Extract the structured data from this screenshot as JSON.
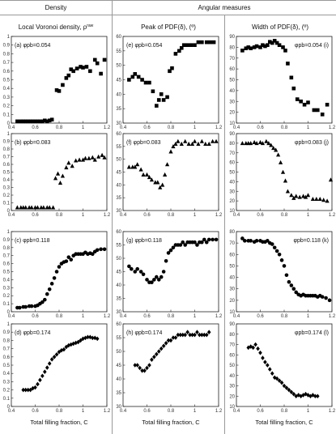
{
  "headers": {
    "density": "Density",
    "angular": "Angular measures"
  },
  "columns": [
    "Local Voronoi density, ρ",
    "Peak of PDF(δ), (º)",
    "Width of PDF(δ), (º)"
  ],
  "xlabel": "Total filling fraction, C",
  "chart_data": [
    {
      "type": "scatter",
      "label": "(a) φpb=0.054",
      "marker": "square",
      "xlim": [
        0.4,
        1.2
      ],
      "ylim": [
        0,
        1
      ],
      "xticks": [
        0.4,
        0.6,
        0.8,
        1,
        1.2
      ],
      "yticks": [
        0,
        0.1,
        0.2,
        0.3,
        0.4,
        0.5,
        0.6,
        0.7,
        0.8,
        0.9,
        1
      ],
      "x": [
        0.45,
        0.48,
        0.5,
        0.52,
        0.54,
        0.56,
        0.58,
        0.6,
        0.62,
        0.64,
        0.66,
        0.68,
        0.7,
        0.72,
        0.74,
        0.78,
        0.8,
        0.83,
        0.86,
        0.88,
        0.9,
        0.92,
        0.95,
        0.98,
        1.0,
        1.03,
        1.06,
        1.1,
        1.12,
        1.15,
        1.18
      ],
      "y": [
        0.02,
        0.02,
        0.02,
        0.02,
        0.02,
        0.02,
        0.02,
        0.02,
        0.02,
        0.02,
        0.02,
        0.03,
        0.02,
        0.03,
        0.04,
        0.38,
        0.37,
        0.44,
        0.52,
        0.55,
        0.62,
        0.6,
        0.63,
        0.65,
        0.64,
        0.65,
        0.6,
        0.73,
        0.69,
        0.57,
        0.73
      ]
    },
    {
      "type": "scatter",
      "label": "(e) φpb=0.054",
      "marker": "square",
      "xlim": [
        0.4,
        1.2
      ],
      "ylim": [
        30,
        60
      ],
      "xticks": [
        0.4,
        0.6,
        0.8,
        1,
        1.2
      ],
      "yticks": [
        30,
        35,
        40,
        45,
        50,
        55,
        60
      ],
      "x": [
        0.45,
        0.48,
        0.5,
        0.53,
        0.56,
        0.59,
        0.62,
        0.65,
        0.68,
        0.7,
        0.72,
        0.74,
        0.77,
        0.79,
        0.81,
        0.84,
        0.87,
        0.89,
        0.91,
        0.94,
        0.97,
        1.0,
        1.03,
        1.06,
        1.1,
        1.13,
        1.16
      ],
      "y": [
        45,
        46,
        47,
        46,
        45,
        44,
        44,
        41,
        36,
        38,
        40,
        38,
        39,
        48,
        49,
        54,
        55,
        56,
        57,
        57,
        57,
        57,
        58,
        58,
        58,
        58,
        58
      ],
      "note": "label printed as (e) φpb=0.054"
    },
    {
      "type": "scatter",
      "label": "φpb=0.054 (i)",
      "marker": "square",
      "xlim": [
        0.4,
        1.2
      ],
      "ylim": [
        10,
        90
      ],
      "xticks": [
        0.4,
        0.6,
        0.8,
        1,
        1.2
      ],
      "yticks": [
        10,
        20,
        30,
        40,
        50,
        60,
        70,
        80,
        90
      ],
      "x": [
        0.45,
        0.48,
        0.5,
        0.52,
        0.55,
        0.57,
        0.6,
        0.62,
        0.64,
        0.66,
        0.68,
        0.7,
        0.72,
        0.74,
        0.76,
        0.79,
        0.81,
        0.83,
        0.86,
        0.88,
        0.91,
        0.94,
        0.97,
        1.0,
        1.05,
        1.08,
        1.12,
        1.16
      ],
      "y": [
        77,
        79,
        80,
        79,
        80,
        81,
        80,
        82,
        81,
        82,
        85,
        84,
        86,
        84,
        82,
        80,
        77,
        65,
        52,
        42,
        32,
        30,
        27,
        29,
        22,
        22,
        18,
        27
      ]
    },
    {
      "type": "scatter",
      "label": "(b) φpb=0.083",
      "marker": "triangle",
      "xlim": [
        0.4,
        1.2
      ],
      "ylim": [
        0,
        1
      ],
      "xticks": [
        0.4,
        0.6,
        0.8,
        1,
        1.2
      ],
      "yticks": [
        0,
        0.1,
        0.2,
        0.3,
        0.4,
        0.5,
        0.6,
        0.7,
        0.8,
        0.9,
        1
      ],
      "x": [
        0.45,
        0.48,
        0.5,
        0.52,
        0.55,
        0.57,
        0.6,
        0.62,
        0.65,
        0.67,
        0.7,
        0.72,
        0.75,
        0.77,
        0.79,
        0.81,
        0.83,
        0.86,
        0.88,
        0.91,
        0.94,
        0.97,
        1.0,
        1.02,
        1.05,
        1.08,
        1.1,
        1.13,
        1.16,
        1.18
      ],
      "y": [
        0.04,
        0.04,
        0.04,
        0.04,
        0.04,
        0.04,
        0.04,
        0.04,
        0.04,
        0.04,
        0.04,
        0.04,
        0.04,
        0.42,
        0.48,
        0.36,
        0.45,
        0.56,
        0.62,
        0.58,
        0.65,
        0.66,
        0.66,
        0.68,
        0.68,
        0.69,
        0.66,
        0.7,
        0.72,
        0.69
      ]
    },
    {
      "type": "scatter",
      "label": "(f) φpb=0.083",
      "marker": "triangle",
      "xlim": [
        0.4,
        1.2
      ],
      "ylim": [
        30,
        60
      ],
      "xticks": [
        0.4,
        0.6,
        0.8,
        1,
        1.2
      ],
      "yticks": [
        30,
        35,
        40,
        45,
        50,
        55,
        60
      ],
      "x": [
        0.45,
        0.48,
        0.5,
        0.52,
        0.55,
        0.57,
        0.6,
        0.62,
        0.64,
        0.67,
        0.69,
        0.71,
        0.73,
        0.75,
        0.77,
        0.8,
        0.82,
        0.84,
        0.86,
        0.89,
        0.92,
        0.95,
        0.98,
        1.0,
        1.03,
        1.06,
        1.09,
        1.12,
        1.15,
        1.18
      ],
      "y": [
        47,
        47,
        47,
        48,
        46,
        44,
        44,
        43,
        42,
        41,
        41,
        39,
        40,
        44,
        48,
        53,
        55,
        56,
        57,
        56,
        57,
        56,
        56,
        57,
        56,
        57,
        56,
        56,
        57,
        57
      ]
    },
    {
      "type": "scatter",
      "label": "φpb=0.083 (j)",
      "marker": "triangle",
      "xlim": [
        0.4,
        1.2
      ],
      "ylim": [
        10,
        90
      ],
      "xticks": [
        0.4,
        0.6,
        0.8,
        1,
        1.2
      ],
      "yticks": [
        10,
        20,
        30,
        40,
        50,
        60,
        70,
        80,
        90
      ],
      "x": [
        0.45,
        0.48,
        0.5,
        0.52,
        0.55,
        0.57,
        0.6,
        0.62,
        0.65,
        0.67,
        0.69,
        0.71,
        0.73,
        0.75,
        0.77,
        0.79,
        0.81,
        0.83,
        0.86,
        0.88,
        0.9,
        0.93,
        0.96,
        0.98,
        1.0,
        1.04,
        1.07,
        1.1,
        1.13,
        1.16,
        1.19
      ],
      "y": [
        80,
        80,
        80,
        80,
        81,
        80,
        81,
        80,
        82,
        80,
        78,
        75,
        73,
        68,
        60,
        50,
        41,
        30,
        26,
        23,
        25,
        24,
        25,
        24,
        26,
        22,
        22,
        22,
        21,
        20,
        42
      ]
    },
    {
      "type": "scatter",
      "label": "(c) φpb=0.118",
      "marker": "circle",
      "xlim": [
        0.4,
        1.2
      ],
      "ylim": [
        0,
        1
      ],
      "xticks": [
        0.4,
        0.6,
        0.8,
        1,
        1.2
      ],
      "yticks": [
        0,
        0.1,
        0.2,
        0.3,
        0.4,
        0.5,
        0.6,
        0.7,
        0.8,
        0.9,
        1
      ],
      "x": [
        0.45,
        0.47,
        0.5,
        0.52,
        0.55,
        0.57,
        0.6,
        0.62,
        0.64,
        0.66,
        0.68,
        0.7,
        0.72,
        0.74,
        0.76,
        0.78,
        0.8,
        0.82,
        0.84,
        0.86,
        0.88,
        0.9,
        0.92,
        0.94,
        0.96,
        0.98,
        1.0,
        1.02,
        1.04,
        1.06,
        1.08,
        1.1,
        1.12,
        1.15,
        1.18
      ],
      "y": [
        0.05,
        0.05,
        0.06,
        0.06,
        0.07,
        0.07,
        0.07,
        0.08,
        0.1,
        0.12,
        0.15,
        0.22,
        0.28,
        0.35,
        0.42,
        0.5,
        0.56,
        0.6,
        0.62,
        0.63,
        0.68,
        0.65,
        0.7,
        0.72,
        0.72,
        0.72,
        0.72,
        0.74,
        0.72,
        0.73,
        0.72,
        0.75,
        0.77,
        0.78,
        0.78
      ]
    },
    {
      "type": "scatter",
      "label": "(g) φpb=0.118",
      "marker": "circle",
      "xlim": [
        0.4,
        1.2
      ],
      "ylim": [
        30,
        60
      ],
      "xticks": [
        0.4,
        0.6,
        0.8,
        1,
        1.2
      ],
      "yticks": [
        30,
        35,
        40,
        45,
        50,
        55,
        60
      ],
      "x": [
        0.45,
        0.47,
        0.5,
        0.52,
        0.55,
        0.57,
        0.6,
        0.62,
        0.64,
        0.66,
        0.68,
        0.7,
        0.72,
        0.74,
        0.76,
        0.78,
        0.8,
        0.82,
        0.84,
        0.86,
        0.88,
        0.9,
        0.92,
        0.94,
        0.96,
        0.98,
        1.0,
        1.02,
        1.04,
        1.06,
        1.08,
        1.1,
        1.12,
        1.15,
        1.18
      ],
      "y": [
        47,
        46,
        45,
        46,
        45,
        44,
        42,
        41,
        41,
        42,
        43,
        42,
        43,
        45,
        49,
        52,
        53,
        54,
        55,
        55,
        55,
        56,
        55,
        56,
        56,
        56,
        56,
        55,
        56,
        56,
        57,
        56,
        57,
        57,
        57
      ]
    },
    {
      "type": "scatter",
      "label": "φpb=0.118 (k)",
      "marker": "circle",
      "xlim": [
        0.4,
        1.2
      ],
      "ylim": [
        10,
        80
      ],
      "xticks": [
        0.4,
        0.6,
        0.8,
        1,
        1.2
      ],
      "yticks": [
        10,
        20,
        30,
        40,
        50,
        60,
        70,
        80
      ],
      "x": [
        0.45,
        0.47,
        0.5,
        0.52,
        0.55,
        0.57,
        0.6,
        0.62,
        0.64,
        0.66,
        0.68,
        0.7,
        0.72,
        0.74,
        0.76,
        0.78,
        0.8,
        0.82,
        0.84,
        0.86,
        0.88,
        0.9,
        0.92,
        0.94,
        0.96,
        0.98,
        1.0,
        1.02,
        1.04,
        1.06,
        1.08,
        1.1,
        1.12,
        1.15,
        1.18
      ],
      "y": [
        74,
        72,
        72,
        72,
        71,
        72,
        72,
        71,
        71,
        72,
        70,
        69,
        66,
        63,
        60,
        55,
        50,
        42,
        36,
        33,
        30,
        27,
        25,
        24,
        25,
        24,
        24,
        24,
        24,
        24,
        23,
        24,
        23,
        22,
        20
      ]
    },
    {
      "type": "scatter",
      "label": "(d) φpb=0.174",
      "marker": "diamond",
      "xlim": [
        0.4,
        1.2
      ],
      "ylim": [
        0,
        1
      ],
      "xticks": [
        0.4,
        0.6,
        0.8,
        1,
        1.2
      ],
      "yticks": [
        0,
        0.1,
        0.2,
        0.3,
        0.4,
        0.5,
        0.6,
        0.7,
        0.8,
        0.9,
        1
      ],
      "x": [
        0.5,
        0.52,
        0.54,
        0.56,
        0.58,
        0.6,
        0.62,
        0.64,
        0.66,
        0.68,
        0.7,
        0.72,
        0.74,
        0.76,
        0.78,
        0.8,
        0.82,
        0.84,
        0.86,
        0.88,
        0.9,
        0.92,
        0.94,
        0.96,
        0.98,
        1.0,
        1.02,
        1.04,
        1.06,
        1.08,
        1.1,
        1.12
      ],
      "y": [
        0.2,
        0.2,
        0.2,
        0.2,
        0.22,
        0.23,
        0.27,
        0.32,
        0.37,
        0.42,
        0.47,
        0.52,
        0.57,
        0.6,
        0.63,
        0.66,
        0.68,
        0.69,
        0.72,
        0.74,
        0.75,
        0.76,
        0.77,
        0.78,
        0.8,
        0.82,
        0.83,
        0.84,
        0.84,
        0.83,
        0.83,
        0.82
      ]
    },
    {
      "type": "scatter",
      "label": "(h) φpb=0.174",
      "marker": "diamond",
      "xlim": [
        0.4,
        1.2
      ],
      "ylim": [
        30,
        60
      ],
      "xticks": [
        0.4,
        0.6,
        0.8,
        1,
        1.2
      ],
      "yticks": [
        30,
        35,
        40,
        45,
        50,
        55,
        60
      ],
      "x": [
        0.5,
        0.52,
        0.54,
        0.56,
        0.58,
        0.6,
        0.62,
        0.64,
        0.66,
        0.68,
        0.7,
        0.72,
        0.74,
        0.76,
        0.78,
        0.8,
        0.82,
        0.84,
        0.86,
        0.88,
        0.9,
        0.92,
        0.94,
        0.96,
        0.98,
        1.0,
        1.02,
        1.04,
        1.06,
        1.08,
        1.1,
        1.12
      ],
      "y": [
        45,
        45,
        44,
        43,
        43,
        44,
        45,
        47,
        48,
        49,
        50,
        51,
        52,
        53,
        54,
        54,
        55,
        55,
        56,
        56,
        56,
        56,
        57,
        56,
        56,
        56,
        57,
        56,
        56,
        56,
        56,
        57
      ]
    },
    {
      "type": "scatter",
      "label": "φpb=0.174 (l)",
      "marker": "diamond",
      "xlim": [
        0.4,
        1.2
      ],
      "ylim": [
        10,
        90
      ],
      "xticks": [
        0.4,
        0.6,
        0.8,
        1,
        1.2
      ],
      "yticks": [
        10,
        20,
        30,
        40,
        50,
        60,
        70,
        80,
        90
      ],
      "x": [
        0.5,
        0.52,
        0.54,
        0.56,
        0.58,
        0.6,
        0.62,
        0.64,
        0.66,
        0.68,
        0.7,
        0.72,
        0.74,
        0.76,
        0.78,
        0.8,
        0.82,
        0.84,
        0.86,
        0.88,
        0.9,
        0.92,
        0.94,
        0.96,
        0.98,
        1.0,
        1.02,
        1.04,
        1.06,
        1.08
      ],
      "y": [
        67,
        68,
        67,
        70,
        66,
        62,
        57,
        53,
        50,
        46,
        42,
        38,
        37,
        35,
        33,
        30,
        28,
        26,
        24,
        22,
        20,
        21,
        20,
        21,
        22,
        21,
        20,
        21,
        20,
        20
      ]
    }
  ]
}
